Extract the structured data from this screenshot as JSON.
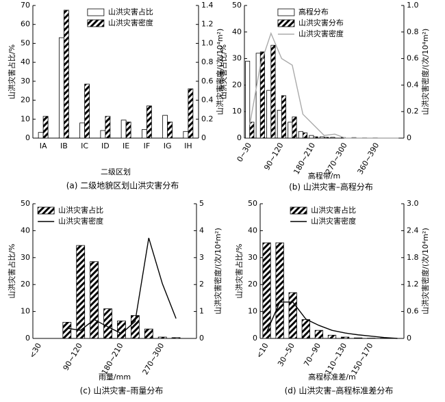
{
  "chart_data": [
    {
      "type": "bar",
      "caption": "(a) 二级地貌区划山洪灾害分布",
      "xlabel": "二级区划",
      "ylabel": "山洪灾害占比/%",
      "y2label": "山洪灾害密度/(次/10⁴m²)",
      "categories": [
        "ⅠA",
        "ⅠB",
        "ⅠC",
        "ⅠD",
        "ⅠE",
        "ⅠF",
        "ⅠG",
        "ⅠH"
      ],
      "ylim": [
        0,
        70
      ],
      "yticks": [
        0,
        10,
        20,
        30,
        40,
        50,
        60,
        70
      ],
      "y2lim": [
        0,
        1.4
      ],
      "y2ticks": [
        0,
        0.2,
        0.4,
        0.6,
        0.8,
        {
          "value": 1,
          "label": "1.0"
        },
        1.2,
        1.4
      ],
      "legend": "upper right",
      "series": [
        {
          "name": "山洪灾害占比",
          "mark": "bar",
          "color": "#ffffff",
          "values": [
            3,
            53,
            8,
            4,
            9.5,
            4.5,
            12,
            3.5
          ]
        },
        {
          "name": "山洪灾害密度",
          "mark": "bar",
          "color": "#000000",
          "hatch": true,
          "axis": "y2",
          "values": [
            0.23,
            1.35,
            0.57,
            0.23,
            0.17,
            0.34,
            0.17,
            0.52
          ]
        }
      ]
    },
    {
      "type": "combo",
      "caption": "(b) 山洪灾害–高程分布",
      "xlabel": "高程带/m",
      "ylabel": "山洪灾害占比/%",
      "y2label": "山洪灾害密度/(次/10⁴m²)",
      "categories": [
        "0~30",
        null,
        null,
        "90~120",
        null,
        null,
        "180~210",
        null,
        null,
        "270~300",
        null,
        null,
        "360~390",
        null,
        null
      ],
      "ylim": [
        0,
        50
      ],
      "yticks": [
        0,
        10,
        20,
        30,
        40,
        50
      ],
      "y2lim": [
        0,
        1
      ],
      "y2ticks": [
        0,
        0.2,
        0.4,
        0.6,
        0.8,
        {
          "value": 1,
          "label": "1.0"
        }
      ],
      "legend": "upper center",
      "series": [
        {
          "name": "高程分布",
          "mark": "bar",
          "color": "#ffffff",
          "values": [
            29,
            32,
            18,
            10.5,
            6,
            2.5,
            1,
            0.5,
            0.3,
            0.2,
            0.2,
            0.1,
            0.1,
            0,
            0
          ]
        },
        {
          "name": "山洪灾害分布",
          "mark": "bar",
          "color": "#000000",
          "hatch": true,
          "values": [
            6,
            32.5,
            35,
            16,
            8,
            2,
            0.5,
            0.3,
            0,
            0,
            0,
            0,
            0,
            0,
            0
          ]
        },
        {
          "name": "山洪灾害密度",
          "mark": "line",
          "color": "#aaaaaa",
          "axis": "y2",
          "values": [
            0.1,
            0.55,
            0.79,
            0.6,
            0.55,
            0.18,
            0.1,
            0.02,
            0.03,
            0,
            0,
            0,
            0,
            0,
            0
          ]
        }
      ]
    },
    {
      "type": "combo",
      "caption": "(c) 山洪灾害–雨量分布",
      "xlabel": "雨量/mm",
      "ylabel": "山洪灾害占比/%",
      "y2label": "山洪灾害密度/(次/10⁴m²)",
      "categories": [
        "<30",
        null,
        null,
        "90~120",
        null,
        null,
        "180~210",
        null,
        null,
        "270~300",
        null,
        null
      ],
      "ylim": [
        0,
        50
      ],
      "yticks": [
        0,
        10,
        20,
        30,
        40,
        50
      ],
      "y2lim": [
        0,
        5
      ],
      "y2ticks": [
        0,
        1,
        2,
        3,
        4,
        5
      ],
      "legend": "upper left",
      "series": [
        {
          "name": "山洪灾害占比",
          "mark": "bar",
          "color": "#000000",
          "hatch": true,
          "values": [
            null,
            null,
            6,
            34.5,
            28.5,
            11,
            6.5,
            8.5,
            3.5,
            0.5,
            0.3,
            null
          ]
        },
        {
          "name": "山洪灾害密度",
          "mark": "line",
          "color": "#000000",
          "axis": "y2",
          "values": [
            null,
            null,
            0.38,
            0.3,
            0.7,
            0.43,
            0.18,
            0.63,
            3.73,
            2.03,
            0.74,
            null
          ]
        }
      ]
    },
    {
      "type": "combo",
      "caption": "(d) 山洪灾害–高程标准差分布",
      "xlabel": "高程标准差/m",
      "ylabel": "山洪灾害占比/%",
      "y2label": "山洪灾害密度/(次/10⁴m²)",
      "categories": [
        "<10",
        null,
        "30~50",
        null,
        "70~90",
        null,
        "110~130",
        null,
        "150~170",
        null,
        null
      ],
      "ylim": [
        0,
        50
      ],
      "yticks": [
        0,
        10,
        20,
        30,
        40,
        50
      ],
      "y2lim": [
        0,
        3
      ],
      "y2ticks": [
        0,
        0.6,
        1.2,
        1.8,
        2.4,
        {
          "value": 3,
          "label": "3.0"
        }
      ],
      "legend": "upper center",
      "series": [
        {
          "name": "山洪灾害占比",
          "mark": "bar",
          "color": "#000000",
          "hatch": true,
          "values": [
            35.5,
            35.5,
            17,
            7,
            3,
            1.2,
            0.5,
            0.2,
            0.1,
            0.1,
            null
          ]
        },
        {
          "name": "山洪灾害密度",
          "mark": "line",
          "color": "#000000",
          "axis": "y2",
          "values": [
            0.14,
            0.81,
            0.81,
            0.43,
            0.29,
            0.18,
            0.12,
            0.08,
            0.05,
            0.02,
            0
          ]
        }
      ]
    }
  ]
}
